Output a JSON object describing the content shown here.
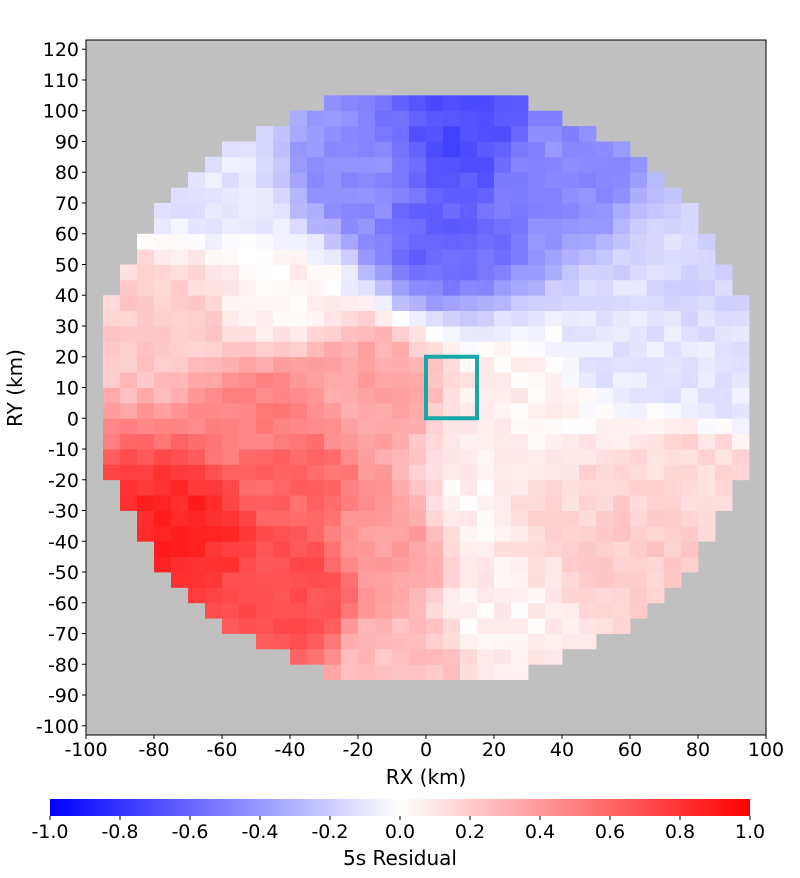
{
  "chart_data": {
    "type": "heatmap",
    "title": "",
    "xlabel": "RX (km)",
    "ylabel": "RY (km)",
    "xlim": [
      -100,
      100
    ],
    "ylim": [
      -103,
      123
    ],
    "xticks": [
      "-100",
      "-80",
      "-60",
      "-40",
      "-20",
      "0",
      "20",
      "40",
      "60",
      "80",
      "100"
    ],
    "yticks": [
      "120",
      "110",
      "100",
      "90",
      "80",
      "70",
      "60",
      "50",
      "40",
      "30",
      "20",
      "10",
      "0",
      "-10",
      "-20",
      "-30",
      "-40",
      "-50",
      "-60",
      "-70",
      "-80",
      "-90",
      "-100"
    ],
    "cell_size_km": 5,
    "domain": {
      "center": [
        0,
        10
      ],
      "radius_km": 97
    },
    "background_color": "#c0c0c0",
    "field_samples": [
      {
        "x": 10,
        "y": 90,
        "value": -0.7
      },
      {
        "x": 5,
        "y": 60,
        "value": -0.6
      },
      {
        "x": -20,
        "y": 80,
        "value": -0.45
      },
      {
        "x": 40,
        "y": 80,
        "value": -0.45
      },
      {
        "x": -60,
        "y": 75,
        "value": -0.1
      },
      {
        "x": 80,
        "y": 50,
        "value": -0.15
      },
      {
        "x": 60,
        "y": 20,
        "value": -0.1
      },
      {
        "x": 85,
        "y": 10,
        "value": -0.1
      },
      {
        "x": -75,
        "y": 30,
        "value": 0.2
      },
      {
        "x": -45,
        "y": 40,
        "value": 0.05
      },
      {
        "x": -20,
        "y": 10,
        "value": 0.35
      },
      {
        "x": -50,
        "y": 0,
        "value": 0.5
      },
      {
        "x": -70,
        "y": -35,
        "value": 0.85
      },
      {
        "x": -40,
        "y": -55,
        "value": 0.7
      },
      {
        "x": -40,
        "y": -20,
        "value": 0.6
      },
      {
        "x": -10,
        "y": -40,
        "value": 0.4
      },
      {
        "x": 15,
        "y": -30,
        "value": 0.05
      },
      {
        "x": 40,
        "y": -30,
        "value": 0.15
      },
      {
        "x": 60,
        "y": -40,
        "value": 0.2
      },
      {
        "x": 20,
        "y": -65,
        "value": 0.05
      },
      {
        "x": -5,
        "y": -80,
        "value": 0.25
      },
      {
        "x": 80,
        "y": -15,
        "value": 0.15
      },
      {
        "x": 30,
        "y": 5,
        "value": 0.05
      }
    ],
    "highlight_box": {
      "x": [
        0,
        15
      ],
      "y": [
        0,
        20
      ],
      "color": "#1aa7a7"
    },
    "colorbar": {
      "label": "5s Residual",
      "range": [
        -1.0,
        1.0
      ],
      "ticks": [
        "-1.0",
        "-0.8",
        "-0.6",
        "-0.4",
        "-0.2",
        "0.0",
        "0.2",
        "0.4",
        "0.6",
        "0.8",
        "1.0"
      ],
      "low_color": "#0000ff",
      "mid_color": "#ffffff",
      "high_color": "#ff0000"
    }
  }
}
